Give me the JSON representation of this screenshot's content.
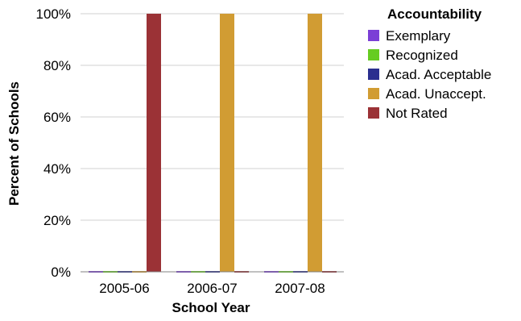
{
  "chart_data": {
    "type": "bar",
    "title": "",
    "xlabel": "School Year",
    "ylabel": "Percent of Schools",
    "categories": [
      "2005-06",
      "2006-07",
      "2007-08"
    ],
    "ylim": [
      0,
      100
    ],
    "yticks": [
      0,
      20,
      40,
      60,
      80,
      100
    ],
    "ytick_labels": [
      "0%",
      "20%",
      "40%",
      "60%",
      "80%",
      "100%"
    ],
    "grid": true,
    "legend": {
      "title": "Accountability",
      "position": "right"
    },
    "series": [
      {
        "name": "Exemplary",
        "color": "#7b3fd6",
        "values": [
          0,
          0,
          0
        ]
      },
      {
        "name": "Recognized",
        "color": "#66cc22",
        "values": [
          0,
          0,
          0
        ]
      },
      {
        "name": "Acad. Acceptable",
        "color": "#2b2f8f",
        "values": [
          0,
          0,
          0
        ]
      },
      {
        "name": "Acad. Unaccept.",
        "color": "#d19c33",
        "values": [
          0,
          100,
          100
        ]
      },
      {
        "name": "Not Rated",
        "color": "#9b3236",
        "values": [
          100,
          0,
          0
        ]
      }
    ]
  }
}
